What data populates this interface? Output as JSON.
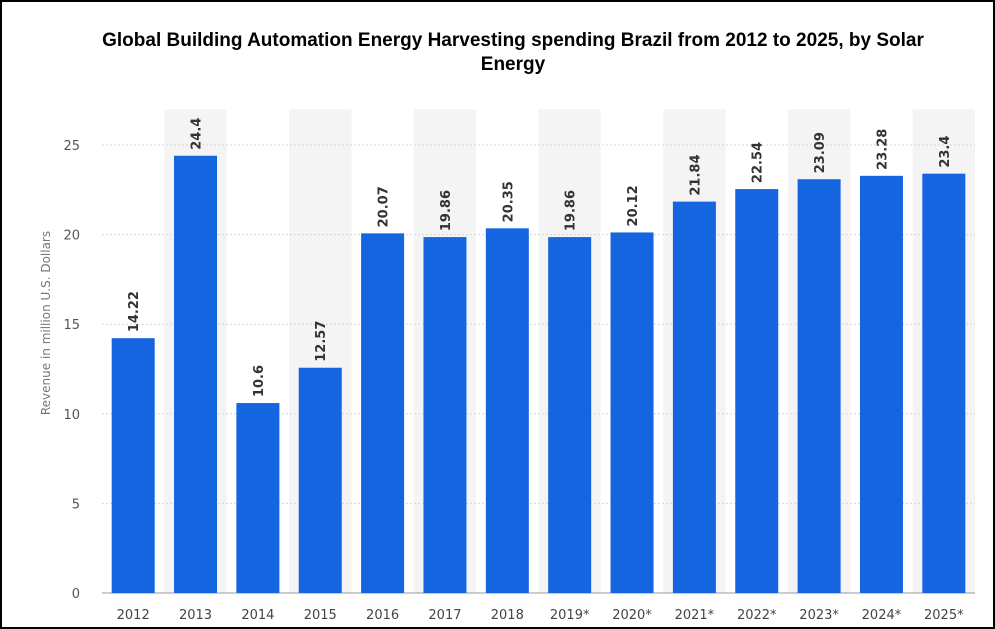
{
  "colors": {
    "bar": "#1565e0",
    "band": "#f4f4f4"
  },
  "chart_data": {
    "type": "bar",
    "title_lines": [
      "Global Building Automation Energy Harvesting spending Brazil from 2012 to 2025, by Solar",
      "Energy"
    ],
    "ylabel": "Revenue in million U.S. Dollars",
    "xlabel": "",
    "ylim": [
      0,
      27
    ],
    "yticks": [
      0,
      5,
      10,
      15,
      20,
      25
    ],
    "grid": true,
    "legend": "none",
    "categories": [
      "2012",
      "2013",
      "2014",
      "2015",
      "2016",
      "2017",
      "2018",
      "2019*",
      "2020*",
      "2021*",
      "2022*",
      "2023*",
      "2024*",
      "2025*"
    ],
    "values": [
      14.22,
      24.4,
      10.6,
      12.57,
      20.07,
      19.86,
      20.35,
      19.86,
      20.12,
      21.84,
      22.54,
      23.09,
      23.28,
      23.4
    ],
    "value_labels": [
      "14.22",
      "24.4",
      "10.6",
      "12.57",
      "20.07",
      "19.86",
      "20.35",
      "19.86",
      "20.12",
      "21.84",
      "22.54",
      "23.09",
      "23.28",
      "23.4"
    ]
  }
}
